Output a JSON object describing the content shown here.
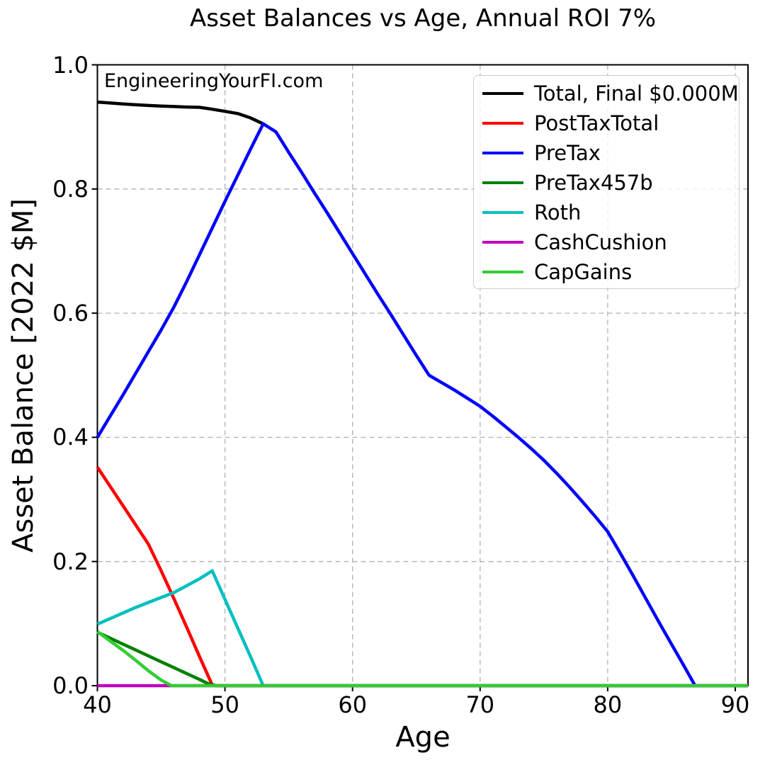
{
  "watermark": "EngineeringYourFI.com",
  "chart_data": {
    "type": "line",
    "title": "Asset Balances vs Age, Annual ROI 7%",
    "xlabel": "Age",
    "ylabel": "Asset Balance [2022 $M]",
    "xlim": [
      40,
      91
    ],
    "ylim": [
      0,
      1.0
    ],
    "xticks": [
      40,
      50,
      60,
      70,
      80,
      90
    ],
    "xtick_labels": [
      "40",
      "50",
      "60",
      "70",
      "80",
      "90"
    ],
    "yticks": [
      0.0,
      0.2,
      0.4,
      0.6,
      0.8,
      1.0
    ],
    "ytick_labels": [
      "0.0",
      "0.2",
      "0.4",
      "0.6",
      "0.8",
      "1.0"
    ],
    "grid": true,
    "grid_color": "#b0b0b0",
    "legend_position": "upper right",
    "series": [
      {
        "key": "total",
        "name": "Total, Final $0.000M",
        "color": "#000000",
        "points": [
          [
            40,
            0.94
          ],
          [
            41,
            0.9385
          ],
          [
            42,
            0.937
          ],
          [
            43,
            0.9357
          ],
          [
            44,
            0.9345
          ],
          [
            45,
            0.9335
          ],
          [
            46,
            0.9328
          ],
          [
            47,
            0.932
          ],
          [
            48,
            0.9315
          ],
          [
            49,
            0.9285
          ],
          [
            50,
            0.925
          ],
          [
            51,
            0.9215
          ],
          [
            52,
            0.9145
          ],
          [
            53,
            0.905
          ]
        ]
      },
      {
        "key": "post_tax_total",
        "name": "PostTaxTotal",
        "color": "#ff0000",
        "points": [
          [
            40,
            0.352
          ],
          [
            41,
            0.321
          ],
          [
            42,
            0.29
          ],
          [
            43,
            0.259
          ],
          [
            44,
            0.228
          ],
          [
            45,
            0.185
          ],
          [
            46,
            0.14
          ],
          [
            47,
            0.094
          ],
          [
            48,
            0.047
          ],
          [
            49,
            0.001
          ],
          [
            49.4,
            0
          ],
          [
            91,
            0
          ]
        ]
      },
      {
        "key": "pre_tax",
        "name": "PreTax",
        "color": "#0000ff",
        "points": [
          [
            40,
            0.4
          ],
          [
            41,
            0.434
          ],
          [
            42,
            0.468
          ],
          [
            43,
            0.503
          ],
          [
            44,
            0.538
          ],
          [
            45,
            0.573
          ],
          [
            46,
            0.61
          ],
          [
            47,
            0.651
          ],
          [
            48,
            0.694
          ],
          [
            49,
            0.737
          ],
          [
            50,
            0.78
          ],
          [
            51,
            0.822
          ],
          [
            52,
            0.864
          ],
          [
            53,
            0.905
          ],
          [
            54,
            0.892
          ],
          [
            55,
            0.859
          ],
          [
            56,
            0.827
          ],
          [
            57,
            0.794
          ],
          [
            58,
            0.762
          ],
          [
            59,
            0.729
          ],
          [
            60,
            0.696
          ],
          [
            61,
            0.663
          ],
          [
            62,
            0.63
          ],
          [
            63,
            0.598
          ],
          [
            64,
            0.565
          ],
          [
            65,
            0.532
          ],
          [
            66,
            0.5
          ],
          [
            67,
            0.488
          ],
          [
            68,
            0.476
          ],
          [
            69,
            0.463
          ],
          [
            70,
            0.45
          ],
          [
            71,
            0.434
          ],
          [
            72,
            0.417
          ],
          [
            73,
            0.4
          ],
          [
            74,
            0.382
          ],
          [
            75,
            0.363
          ],
          [
            76,
            0.342
          ],
          [
            77,
            0.32
          ],
          [
            78,
            0.297
          ],
          [
            79,
            0.273
          ],
          [
            80,
            0.248
          ],
          [
            81,
            0.213
          ],
          [
            82,
            0.177
          ],
          [
            83,
            0.14
          ],
          [
            84,
            0.103
          ],
          [
            85,
            0.067
          ],
          [
            86,
            0.031
          ],
          [
            86.85,
            0
          ],
          [
            91,
            0
          ]
        ]
      },
      {
        "key": "pre_tax_457b",
        "name": "PreTax457b",
        "color": "#008000",
        "points": [
          [
            40,
            0.086
          ],
          [
            41,
            0.0765
          ],
          [
            42,
            0.067
          ],
          [
            43,
            0.0575
          ],
          [
            44,
            0.048
          ],
          [
            45,
            0.0385
          ],
          [
            46,
            0.029
          ],
          [
            47,
            0.0195
          ],
          [
            48,
            0.01
          ],
          [
            48.7,
            0.003
          ],
          [
            49.3,
            0
          ],
          [
            91,
            0
          ]
        ]
      },
      {
        "key": "roth",
        "name": "Roth",
        "color": "#00bfbf",
        "points": [
          [
            40,
            0.099
          ],
          [
            41,
            0.108
          ],
          [
            42,
            0.117
          ],
          [
            43,
            0.126
          ],
          [
            44,
            0.134
          ],
          [
            45,
            0.142
          ],
          [
            46,
            0.15
          ],
          [
            47,
            0.161
          ],
          [
            48,
            0.172
          ],
          [
            49,
            0.185
          ],
          [
            50,
            0.139
          ],
          [
            51,
            0.093
          ],
          [
            52,
            0.047
          ],
          [
            53,
            0
          ],
          [
            91,
            0
          ]
        ]
      },
      {
        "key": "cash_cushion",
        "name": "CashCushion",
        "color": "#bf00bf",
        "points": [
          [
            40,
            0
          ],
          [
            91,
            0
          ]
        ]
      },
      {
        "key": "cap_gains",
        "name": "CapGains",
        "color": "#32cd32",
        "points": [
          [
            40,
            0.087
          ],
          [
            41,
            0.072
          ],
          [
            42,
            0.057
          ],
          [
            43,
            0.041
          ],
          [
            44,
            0.024
          ],
          [
            45,
            0.009
          ],
          [
            45.8,
            0
          ],
          [
            91,
            0
          ]
        ]
      }
    ]
  }
}
